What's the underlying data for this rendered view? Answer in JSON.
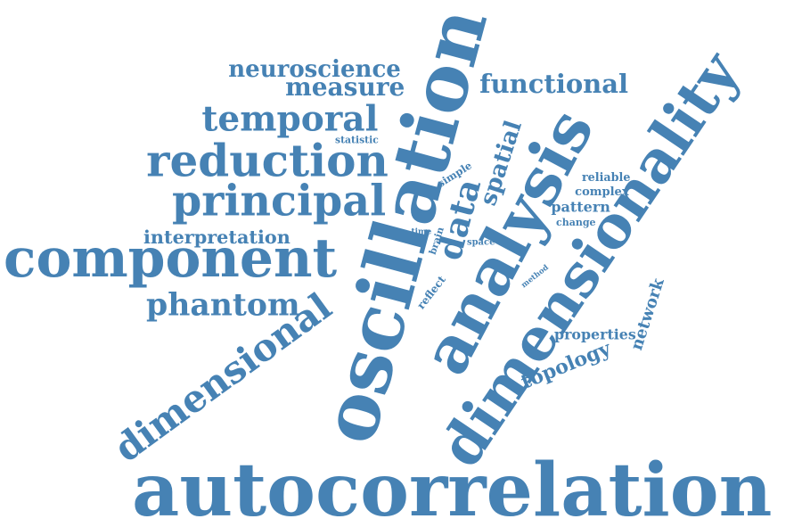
{
  "word_color": "#4682b4",
  "words": [
    "autocorrelation",
    "oscillation",
    "dimensionality",
    "dimensional",
    "analysis",
    "component",
    "reduction",
    "principal",
    "temporal",
    "neuroscience",
    "measure",
    "functional",
    "data",
    "spatial",
    "phantom",
    "interpretation",
    "network",
    "topology",
    "properties",
    "statistic",
    "reliable",
    "complex",
    "pattern",
    "change",
    "simple",
    "brain",
    "time",
    "space",
    "reflect",
    "method"
  ]
}
